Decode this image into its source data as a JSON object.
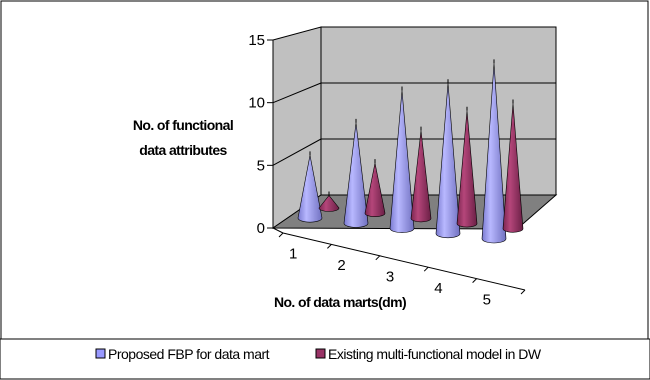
{
  "chart_data": {
    "type": "bar",
    "style": "3d-cone",
    "categories": [
      "1",
      "2",
      "3",
      "4",
      "5"
    ],
    "xlabel": "No. of data marts(dm)",
    "ylabel": [
      "No. of functional",
      "data attributes"
    ],
    "ylim": [
      0,
      15
    ],
    "yticks": [
      "0",
      "5",
      "10",
      "15"
    ],
    "grid": true,
    "legend_position": "bottom",
    "series": [
      {
        "name": "Proposed FBP for data mart",
        "values": [
          5,
          8,
          11,
          12,
          14
        ],
        "color": "#9999FF"
      },
      {
        "name": "Existing multi-functional model in DW",
        "values": [
          1,
          4,
          7,
          9,
          10
        ],
        "color": "#993366"
      }
    ],
    "colors": {
      "floor": "#808080",
      "walls": "#C0C0C0",
      "frame": "#000000"
    }
  }
}
